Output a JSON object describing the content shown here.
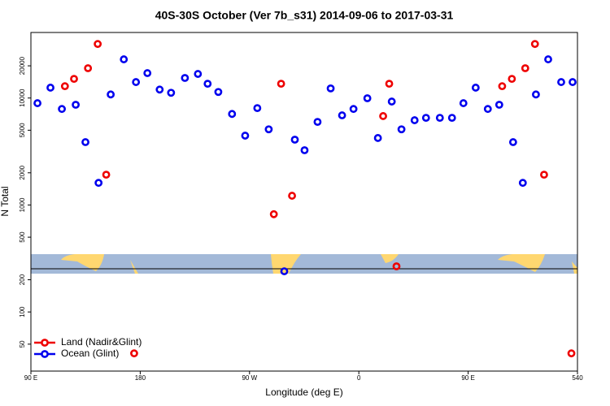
{
  "chart_data": {
    "type": "scatter",
    "title": "40S-30S October (Ver 7b_s31)   2014-09-06 to 2017-03-31",
    "xlabel": "Longitude (deg E)",
    "ylabel": "N Total",
    "log_y": true,
    "xlim": [
      90,
      540
    ],
    "xticks": [
      {
        "value": 90,
        "label": "90 E"
      },
      180,
      {
        "value": 270,
        "label": "90 W"
      },
      {
        "value": 360,
        "label": "0"
      },
      {
        "value": 450,
        "label": "90 E"
      },
      540
    ],
    "ylim": [
      28,
      41000
    ],
    "yticks": [
      50,
      100,
      200,
      500,
      1000,
      2000,
      5000,
      10000,
      20000
    ],
    "legend_position": "lower left",
    "series": [
      {
        "name": "Land (Nadir&Glint)",
        "color": "#ee0000",
        "x": [
          118,
          125.5,
          137,
          145,
          152,
          175,
          290,
          296,
          305,
          380,
          385,
          391,
          478,
          486,
          497,
          505,
          512.5,
          535
        ],
        "values": [
          12900,
          15100,
          19000,
          32000,
          1920,
          41,
          820,
          13600,
          1220,
          6780,
          13600,
          267,
          12900,
          15100,
          19000,
          32000,
          1920,
          41
        ]
      },
      {
        "name": "Ocean (Glint)",
        "color": "#0000ee",
        "x": [
          95.4,
          106.1,
          115.5,
          126.9,
          134.9,
          145.7,
          155.7,
          166.5,
          176.5,
          185.9,
          196,
          205.4,
          216.8,
          227.5,
          235.5,
          244.3,
          255.6,
          266.4,
          276.4,
          285.8,
          298.6,
          307.3,
          315.3,
          326,
          336.8,
          346.2,
          355.6,
          367,
          375.7,
          387.1,
          395.1,
          405.9,
          415.3,
          426.7,
          436.7,
          446.1,
          456.2,
          466.2,
          475.6,
          487,
          495,
          505.8,
          515.9,
          526.6,
          536
        ],
        "values": [
          8950,
          12500,
          7900,
          8650,
          3870,
          1610,
          10800,
          23000,
          14100,
          17100,
          12000,
          11200,
          15400,
          16800,
          13600,
          11400,
          7100,
          4450,
          8050,
          5100,
          240,
          4080,
          3250,
          5980,
          12300,
          6890,
          7900,
          9950,
          4230,
          9270,
          5100,
          6200,
          6530,
          6530,
          6530,
          8950,
          12500,
          7900,
          8650,
          3870,
          1610,
          10800,
          23000,
          14100,
          14100
        ]
      }
    ]
  }
}
